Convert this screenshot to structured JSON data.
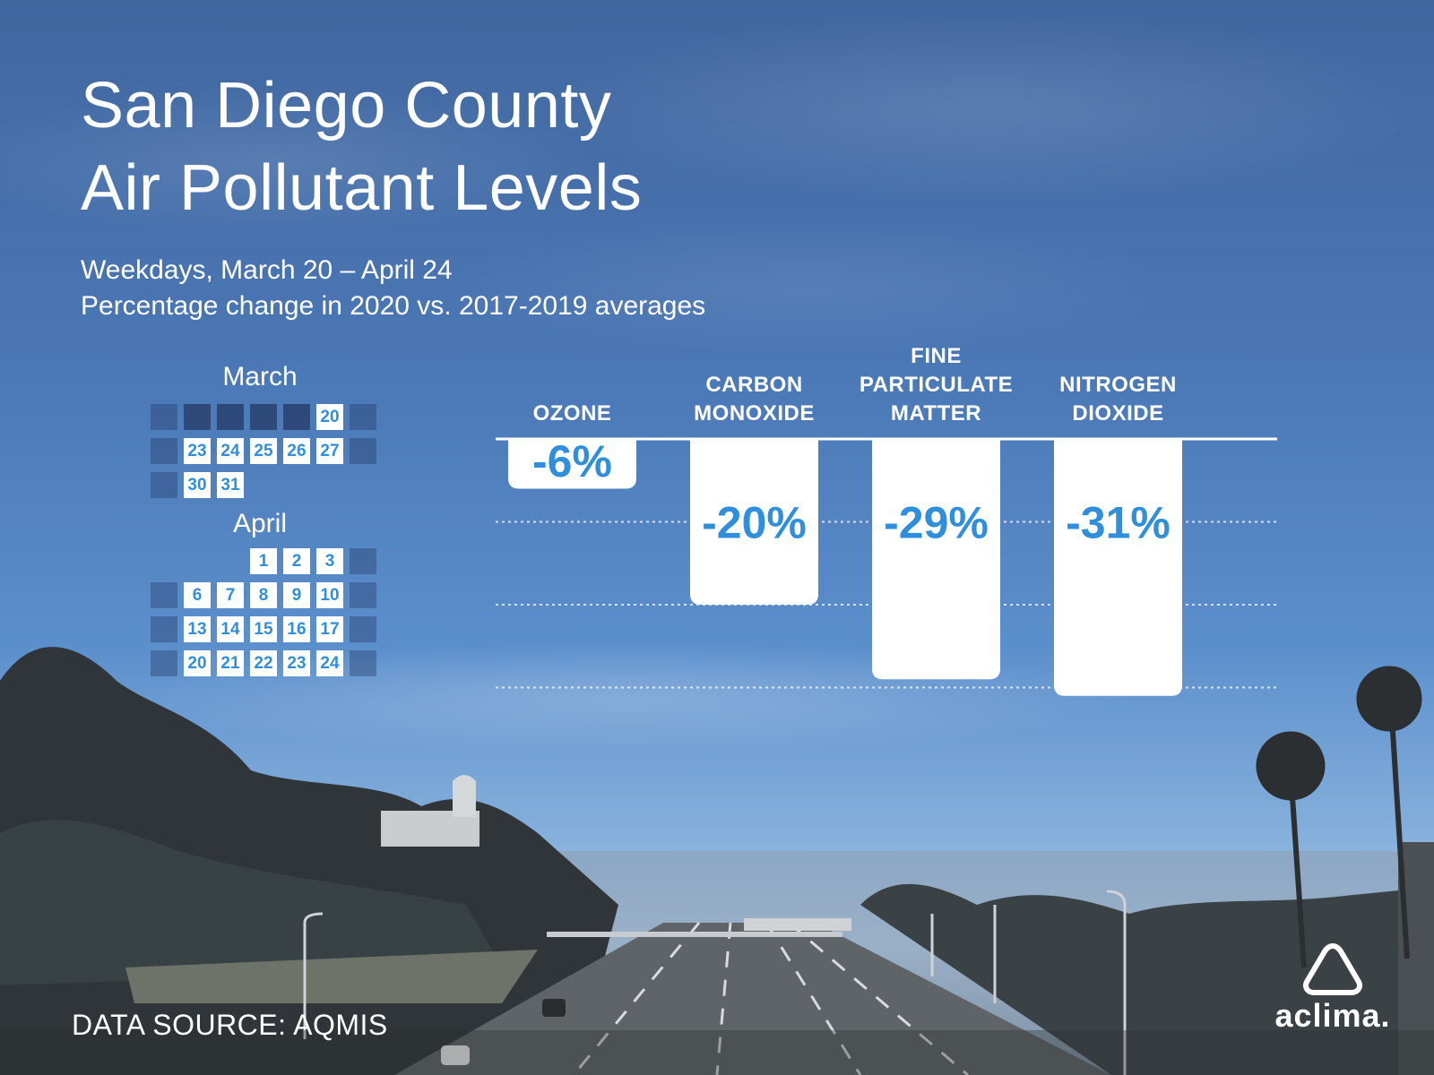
{
  "title_lines": [
    "San Diego County",
    "Air Pollutant Levels"
  ],
  "subtitle_lines": [
    "Weekdays, March 20 – April 24",
    "Percentage change in 2020 vs. 2017-2019 averages"
  ],
  "calendar": {
    "march": {
      "label": "March",
      "days": [
        "20",
        "23",
        "24",
        "25",
        "26",
        "27",
        "30",
        "31"
      ]
    },
    "april": {
      "label": "April",
      "days": [
        "1",
        "2",
        "3",
        "6",
        "7",
        "8",
        "9",
        "10",
        "13",
        "14",
        "15",
        "16",
        "17",
        "20",
        "21",
        "22",
        "23",
        "24"
      ]
    }
  },
  "chart_data": {
    "type": "bar",
    "categories": [
      "OZONE",
      "CARBON MONOXIDE",
      "FINE PARTICULATE MATTER",
      "NITROGEN DIOXIDE"
    ],
    "category_lines": [
      [
        "OZONE"
      ],
      [
        "CARBON",
        "MONOXIDE"
      ],
      [
        "FINE",
        "PARTICULATE",
        "MATTER"
      ],
      [
        "NITROGEN",
        "DIOXIDE"
      ]
    ],
    "values": [
      -6,
      -20,
      -29,
      -31
    ],
    "value_labels": [
      "-6%",
      "-20%",
      "-29%",
      "-31%"
    ],
    "title": "San Diego County Air Pollutant Levels",
    "subtitle": "Weekdays, March 20 – April 24 · Percentage change in 2020 vs. 2017-2019 averages",
    "ylim": [
      -33,
      0
    ],
    "gridlines": [
      -10,
      -20,
      -30
    ],
    "grid": true,
    "bar_color": "#ffffff",
    "label_color": "#2f8fdc"
  },
  "source_text": "DATA SOURCE: AQMIS",
  "brand": {
    "name": "aclima.",
    "logo_icon": "rounded-triangle-icon"
  },
  "colors": {
    "accent": "#2f8fdc",
    "sky": "#4b78b6"
  }
}
